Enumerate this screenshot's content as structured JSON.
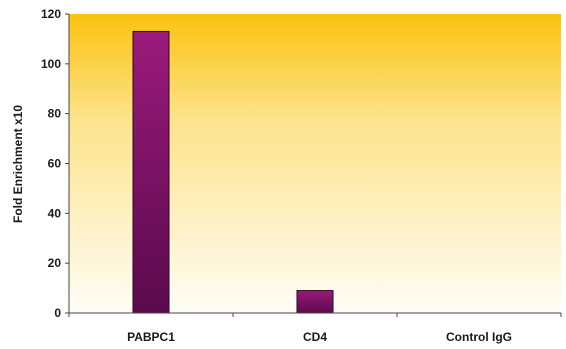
{
  "chart_data": {
    "type": "bar",
    "categories": [
      "PABPC1",
      "CD4",
      "Control IgG"
    ],
    "values": [
      113,
      9,
      0
    ],
    "title": "",
    "xlabel": "",
    "ylabel": "Fold Enrichment x10",
    "ylim": [
      0,
      120
    ],
    "yticks": [
      0,
      20,
      40,
      60,
      80,
      100,
      120
    ],
    "grid": false,
    "legend": "none",
    "colors": {
      "bar_top": "#9b1a7c",
      "bar_bottom": "#5a0a4c",
      "bar_edge": "#2b0624",
      "plot_bg_top": "#fbc20e",
      "plot_bg_bottom": "#fffdf6",
      "axis": "#444444"
    }
  }
}
